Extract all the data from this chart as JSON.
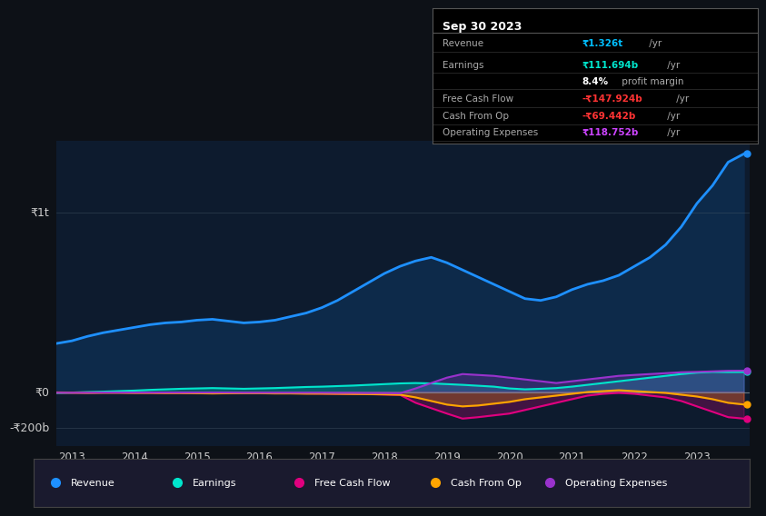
{
  "bg_color": "#0d1117",
  "plot_bg_color": "#0d1b2e",
  "years": [
    2012.75,
    2013.0,
    2013.25,
    2013.5,
    2013.75,
    2014.0,
    2014.25,
    2014.5,
    2014.75,
    2015.0,
    2015.25,
    2015.5,
    2015.75,
    2016.0,
    2016.25,
    2016.5,
    2016.75,
    2017.0,
    2017.25,
    2017.5,
    2017.75,
    2018.0,
    2018.25,
    2018.5,
    2018.75,
    2019.0,
    2019.25,
    2019.5,
    2019.75,
    2020.0,
    2020.25,
    2020.5,
    2020.75,
    2021.0,
    2021.25,
    2021.5,
    2021.75,
    2022.0,
    2022.25,
    2022.5,
    2022.75,
    2023.0,
    2023.25,
    2023.5,
    2023.75
  ],
  "revenue": [
    270,
    285,
    310,
    330,
    345,
    360,
    375,
    385,
    390,
    400,
    405,
    395,
    385,
    390,
    400,
    420,
    440,
    470,
    510,
    560,
    610,
    660,
    700,
    730,
    750,
    720,
    680,
    640,
    600,
    560,
    520,
    510,
    530,
    570,
    600,
    620,
    650,
    700,
    750,
    820,
    920,
    1050,
    1150,
    1280,
    1326
  ],
  "earnings": [
    -5,
    -3,
    0,
    2,
    5,
    8,
    12,
    15,
    18,
    20,
    22,
    20,
    18,
    20,
    22,
    25,
    28,
    30,
    33,
    36,
    40,
    44,
    48,
    50,
    48,
    44,
    40,
    35,
    30,
    20,
    15,
    18,
    22,
    30,
    40,
    50,
    60,
    70,
    80,
    90,
    100,
    108,
    112,
    111,
    111.694
  ],
  "free_cash_flow": [
    -2,
    -3,
    -4,
    -3,
    -3,
    -4,
    -4,
    -5,
    -5,
    -6,
    -7,
    -7,
    -6,
    -6,
    -7,
    -7,
    -8,
    -9,
    -10,
    -11,
    -12,
    -14,
    -16,
    -60,
    -90,
    -120,
    -148,
    -140,
    -130,
    -120,
    -100,
    -80,
    -60,
    -40,
    -20,
    -10,
    -5,
    -10,
    -20,
    -30,
    -50,
    -80,
    -110,
    -140,
    -148
  ],
  "cash_from_op": [
    -3,
    -4,
    -5,
    -4,
    -4,
    -5,
    -5,
    -6,
    -6,
    -7,
    -8,
    -7,
    -7,
    -7,
    -8,
    -8,
    -9,
    -9,
    -10,
    -11,
    -12,
    -13,
    -15,
    -30,
    -50,
    -70,
    -80,
    -75,
    -65,
    -55,
    -40,
    -30,
    -20,
    -10,
    0,
    5,
    10,
    5,
    0,
    -5,
    -15,
    -25,
    -40,
    -60,
    -69.442
  ],
  "op_expenses": [
    -4,
    -4,
    -4,
    -3,
    -3,
    -3,
    -3,
    -3,
    -3,
    -3,
    -3,
    -3,
    -4,
    -4,
    -4,
    -4,
    -4,
    -4,
    -5,
    -5,
    -6,
    -6,
    -7,
    20,
    50,
    80,
    100,
    95,
    90,
    80,
    70,
    60,
    50,
    60,
    70,
    80,
    90,
    95,
    100,
    105,
    110,
    112,
    115,
    118,
    118.752
  ],
  "ylim": [
    -300,
    1400
  ],
  "yticks": [
    -200,
    0,
    1000
  ],
  "ytick_labels": [
    "-₹200b",
    "₹0",
    "₹1t"
  ],
  "xticks": [
    2013,
    2014,
    2015,
    2016,
    2017,
    2018,
    2019,
    2020,
    2021,
    2022,
    2023
  ],
  "revenue_color": "#1e90ff",
  "revenue_fill": "#0d2a4a",
  "earnings_color": "#00e5cc",
  "free_cash_flow_color": "#e0007f",
  "cash_from_op_color": "#ffa500",
  "op_expenses_color": "#9932cc",
  "legend_bg": "#1a1a2e",
  "legend_border": "#444444",
  "box_date": "Sep 30 2023",
  "box_rows": [
    {
      "label": "Revenue",
      "value": "₹1.326t",
      "unit": " /yr",
      "value_color": "#00bfff"
    },
    {
      "label": "Earnings",
      "value": "₹111.694b",
      "unit": " /yr",
      "value_color": "#00e5cc"
    },
    {
      "label": "",
      "value": "8.4%",
      "unit": " profit margin",
      "value_color": "#ffffff"
    },
    {
      "label": "Free Cash Flow",
      "value": "-₹147.924b",
      "unit": " /yr",
      "value_color": "#ff3333"
    },
    {
      "label": "Cash From Op",
      "value": "-₹69.442b",
      "unit": " /yr",
      "value_color": "#ff3333"
    },
    {
      "label": "Operating Expenses",
      "value": "₹118.752b",
      "unit": " /yr",
      "value_color": "#cc44ff"
    }
  ],
  "legend_items": [
    {
      "color": "#1e90ff",
      "label": "Revenue"
    },
    {
      "color": "#00e5cc",
      "label": "Earnings"
    },
    {
      "color": "#e0007f",
      "label": "Free Cash Flow"
    },
    {
      "color": "#ffa500",
      "label": "Cash From Op"
    },
    {
      "color": "#9932cc",
      "label": "Operating Expenses"
    }
  ]
}
